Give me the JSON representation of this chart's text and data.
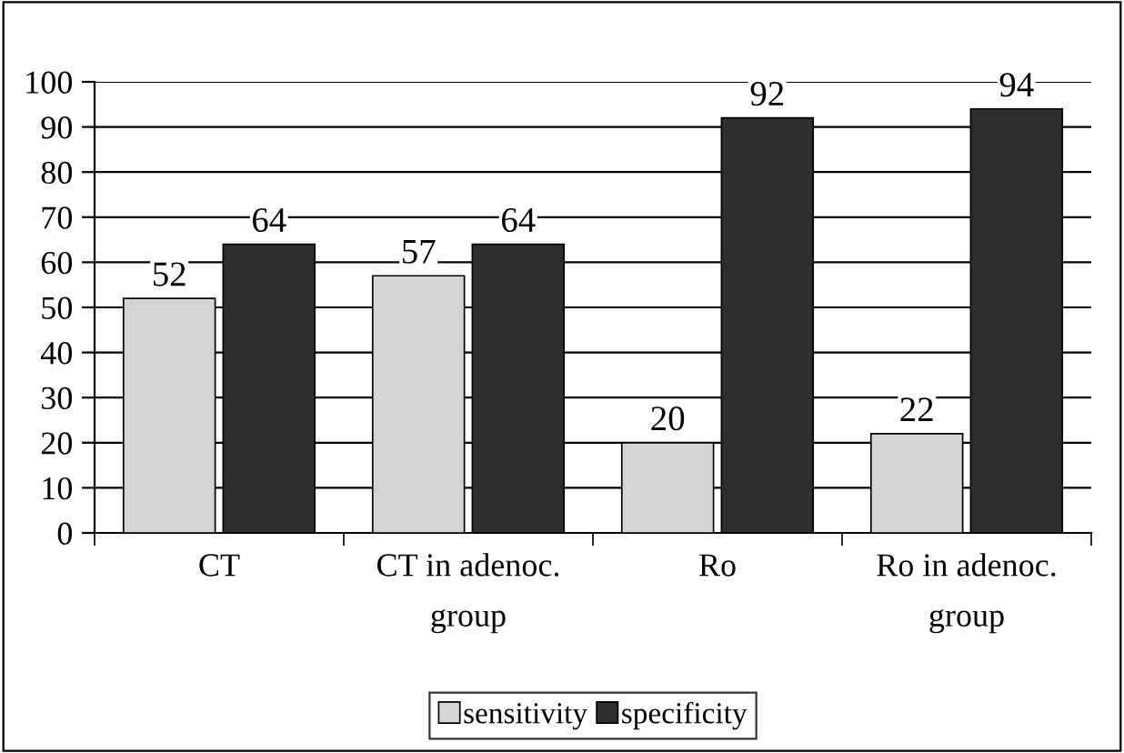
{
  "chart_data": {
    "type": "bar",
    "categories": [
      "CT",
      "CT in adenoc.\ngroup",
      "Ro",
      "Ro in adenoc.\ngroup"
    ],
    "series": [
      {
        "name": "sensitivity",
        "color": "#d4d4d4",
        "values": [
          52,
          57,
          20,
          22
        ]
      },
      {
        "name": "specificity",
        "color": "#2e2e2e",
        "values": [
          64,
          64,
          92,
          94
        ]
      }
    ],
    "ylim": [
      0,
      100
    ],
    "yticks": [
      0,
      10,
      20,
      30,
      40,
      50,
      60,
      70,
      80,
      90,
      100
    ],
    "grid": "y",
    "legend": "bottom",
    "data_labels": true
  }
}
